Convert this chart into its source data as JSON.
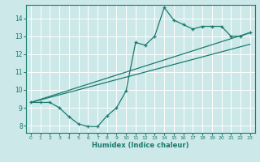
{
  "xlabel": "Humidex (Indice chaleur)",
  "bg_color": "#cce8e8",
  "grid_color": "#ffffff",
  "line_color": "#1a7a6e",
  "xlim": [
    -0.5,
    23.5
  ],
  "ylim": [
    7.6,
    14.75
  ],
  "yticks": [
    8,
    9,
    10,
    11,
    12,
    13,
    14
  ],
  "xticks": [
    0,
    1,
    2,
    3,
    4,
    5,
    6,
    7,
    8,
    9,
    10,
    11,
    12,
    13,
    14,
    15,
    16,
    17,
    18,
    19,
    20,
    21,
    22,
    23
  ],
  "curve1_x": [
    0,
    1,
    2,
    3,
    4,
    5,
    6,
    7,
    8,
    9,
    10,
    11,
    12,
    13,
    14,
    15,
    16,
    17,
    18,
    19,
    20,
    21,
    22,
    23
  ],
  "curve1_y": [
    9.3,
    9.3,
    9.3,
    9.0,
    8.5,
    8.1,
    7.95,
    7.95,
    8.55,
    9.0,
    9.95,
    12.65,
    12.5,
    13.0,
    14.6,
    13.9,
    13.65,
    13.4,
    13.55,
    13.55,
    13.55,
    13.0,
    13.0,
    13.2
  ],
  "line2_x": [
    0,
    23
  ],
  "line2_y": [
    9.3,
    13.2
  ],
  "line3_x": [
    0,
    23
  ],
  "line3_y": [
    9.3,
    12.55
  ]
}
